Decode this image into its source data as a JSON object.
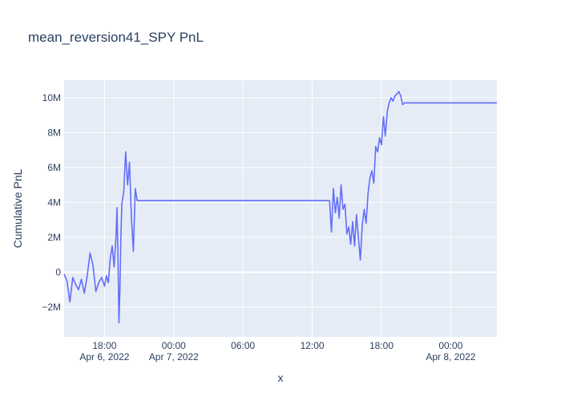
{
  "chart_data": {
    "type": "line",
    "title": "mean_reversion41_SPY PnL",
    "xlabel": "x",
    "ylabel": "Cumulative PnL",
    "x_range": [
      "2022-04-06 14:30",
      "2022-04-08 04:00"
    ],
    "ylim": [
      -3700000,
      11000000
    ],
    "grid": true,
    "legend": "none",
    "x_ticks": [
      {
        "t": "2022-04-06 18:00",
        "label": "18:00",
        "sublabel": "Apr 6, 2022"
      },
      {
        "t": "2022-04-07 00:00",
        "label": "00:00",
        "sublabel": "Apr 7, 2022"
      },
      {
        "t": "2022-04-07 06:00",
        "label": "06:00",
        "sublabel": ""
      },
      {
        "t": "2022-04-07 12:00",
        "label": "12:00",
        "sublabel": ""
      },
      {
        "t": "2022-04-07 18:00",
        "label": "18:00",
        "sublabel": ""
      },
      {
        "t": "2022-04-08 00:00",
        "label": "00:00",
        "sublabel": "Apr 8, 2022"
      }
    ],
    "y_ticks": [
      {
        "v": -2000000,
        "label": "−2M"
      },
      {
        "v": 0,
        "label": "0"
      },
      {
        "v": 2000000,
        "label": "2M"
      },
      {
        "v": 4000000,
        "label": "4M"
      },
      {
        "v": 6000000,
        "label": "6M"
      },
      {
        "v": 8000000,
        "label": "8M"
      },
      {
        "v": 10000000,
        "label": "10M"
      }
    ],
    "colors": {
      "line": "#636efa",
      "plot_bg": "#e5ecf6",
      "grid": "#ffffff",
      "text": "#2a3f5f"
    },
    "series": [
      {
        "x": [
          "2022-04-06 14:30",
          "2022-04-06 14:45",
          "2022-04-06 15:00",
          "2022-04-06 15:15",
          "2022-04-06 15:30",
          "2022-04-06 15:45",
          "2022-04-06 16:00",
          "2022-04-06 16:15",
          "2022-04-06 16:30",
          "2022-04-06 16:45",
          "2022-04-06 17:00",
          "2022-04-06 17:15",
          "2022-04-06 17:30",
          "2022-04-06 17:45",
          "2022-04-06 18:00",
          "2022-04-06 18:10",
          "2022-04-06 18:20",
          "2022-04-06 18:30",
          "2022-04-06 18:40",
          "2022-04-06 18:50",
          "2022-04-06 19:00",
          "2022-04-06 19:05",
          "2022-04-06 19:10",
          "2022-04-06 19:15",
          "2022-04-06 19:20",
          "2022-04-06 19:25",
          "2022-04-06 19:30",
          "2022-04-06 19:40",
          "2022-04-06 19:50",
          "2022-04-06 20:00",
          "2022-04-06 20:10",
          "2022-04-06 20:20",
          "2022-04-06 20:30",
          "2022-04-06 20:40",
          "2022-04-06 20:50",
          "2022-04-06 21:00",
          "2022-04-07 13:30",
          "2022-04-07 13:40",
          "2022-04-07 13:50",
          "2022-04-07 14:00",
          "2022-04-07 14:10",
          "2022-04-07 14:20",
          "2022-04-07 14:30",
          "2022-04-07 14:40",
          "2022-04-07 14:50",
          "2022-04-07 15:00",
          "2022-04-07 15:10",
          "2022-04-07 15:20",
          "2022-04-07 15:30",
          "2022-04-07 15:40",
          "2022-04-07 15:50",
          "2022-04-07 16:00",
          "2022-04-07 16:10",
          "2022-04-07 16:20",
          "2022-04-07 16:30",
          "2022-04-07 16:40",
          "2022-04-07 16:50",
          "2022-04-07 17:00",
          "2022-04-07 17:10",
          "2022-04-07 17:20",
          "2022-04-07 17:30",
          "2022-04-07 17:40",
          "2022-04-07 17:50",
          "2022-04-07 18:00",
          "2022-04-07 18:10",
          "2022-04-07 18:20",
          "2022-04-07 18:30",
          "2022-04-07 18:40",
          "2022-04-07 18:50",
          "2022-04-07 19:00",
          "2022-04-07 19:10",
          "2022-04-07 19:20",
          "2022-04-07 19:30",
          "2022-04-07 19:40",
          "2022-04-07 19:50",
          "2022-04-07 20:00",
          "2022-04-07 20:10",
          "2022-04-07 20:20",
          "2022-04-08 04:00"
        ],
        "values": [
          -100000,
          -500000,
          -1700000,
          -300000,
          -700000,
          -1000000,
          -400000,
          -1200000,
          -200000,
          1100000,
          400000,
          -1100000,
          -600000,
          -300000,
          -800000,
          -200000,
          -600000,
          800000,
          1500000,
          300000,
          2100000,
          3700000,
          900000,
          -2900000,
          -1000000,
          1900000,
          3900000,
          4600000,
          6900000,
          5000000,
          6300000,
          3100000,
          1200000,
          4800000,
          4100000,
          4100000,
          4100000,
          2300000,
          4800000,
          3400000,
          4300000,
          3100000,
          5000000,
          3600000,
          3900000,
          2200000,
          2600000,
          1600000,
          2900000,
          1500000,
          3300000,
          2000000,
          700000,
          2700000,
          3600000,
          2800000,
          4500000,
          5400000,
          5800000,
          5100000,
          7200000,
          6900000,
          7700000,
          7300000,
          8900000,
          7800000,
          9200000,
          9700000,
          10000000,
          9800000,
          10100000,
          10200000,
          10350000,
          10100000,
          9600000,
          9700000,
          9700000,
          9700000,
          9700000
        ]
      }
    ]
  }
}
